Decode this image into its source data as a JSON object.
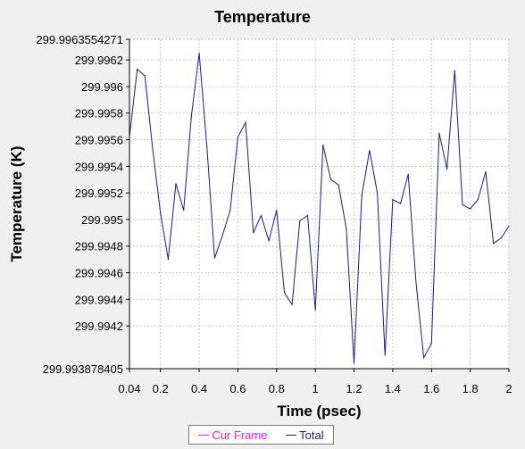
{
  "chart_data": {
    "type": "line",
    "title": "Temperature",
    "xlabel": "Time (psec)",
    "ylabel": "Temperature (K)",
    "xlim": [
      0.04,
      2
    ],
    "ylim": [
      299.993878405,
      299.9963554271
    ],
    "x_tick_labels": [
      "0.04",
      "0.2",
      "0.4",
      "0.6",
      "0.8",
      "1",
      "1.2",
      "1.4",
      "1.6",
      "1.8",
      "2"
    ],
    "x_tick_values": [
      0.04,
      0.2,
      0.4,
      0.6,
      0.8,
      1,
      1.2,
      1.4,
      1.6,
      1.8,
      2
    ],
    "y_tick_labels": [
      "299.9963554271",
      "299.9962",
      "299.996",
      "299.9958",
      "299.9956",
      "299.9954",
      "299.9952",
      "299.995",
      "299.9948",
      "299.9946",
      "299.9944",
      "299.9942",
      "299.993878405"
    ],
    "y_tick_values": [
      299.9963554271,
      299.9962,
      299.996,
      299.9958,
      299.9956,
      299.9954,
      299.9952,
      299.995,
      299.9948,
      299.9946,
      299.9944,
      299.9942,
      299.993878405
    ],
    "grid": true,
    "legend_position": "bottom",
    "series": [
      {
        "name": "Cur Frame",
        "color": "#e020e0",
        "x": [],
        "y": []
      },
      {
        "name": "Total",
        "color": "#1a1a8c",
        "x": [
          0.04,
          0.08,
          0.12,
          0.16,
          0.2,
          0.24,
          0.28,
          0.32,
          0.36,
          0.4,
          0.44,
          0.48,
          0.52,
          0.56,
          0.6,
          0.64,
          0.68,
          0.72,
          0.76,
          0.8,
          0.84,
          0.88,
          0.92,
          0.96,
          1.0,
          1.04,
          1.08,
          1.12,
          1.16,
          1.2,
          1.24,
          1.28,
          1.32,
          1.36,
          1.4,
          1.44,
          1.48,
          1.52,
          1.56,
          1.6,
          1.64,
          1.68,
          1.72,
          1.76,
          1.8,
          1.84,
          1.88,
          1.92,
          1.96,
          2.0
        ],
        "y": [
          299.99562,
          299.99613,
          299.99608,
          299.99553,
          299.99505,
          299.9947,
          299.99527,
          299.99507,
          299.99578,
          299.99625,
          299.99555,
          299.99471,
          299.99488,
          299.99507,
          299.99562,
          299.99573,
          299.9949,
          299.99503,
          299.99484,
          299.99507,
          299.99445,
          299.99436,
          299.99499,
          299.99503,
          299.99432,
          299.99556,
          299.9953,
          299.99526,
          299.99493,
          299.99392,
          299.99518,
          299.99552,
          299.9952,
          299.99398,
          299.99515,
          299.99512,
          299.99534,
          299.99453,
          299.99396,
          299.99407,
          299.99565,
          299.99538,
          299.99612,
          299.99511,
          299.99508,
          299.99515,
          299.99536,
          299.99482,
          299.99486,
          299.99495
        ]
      }
    ]
  }
}
